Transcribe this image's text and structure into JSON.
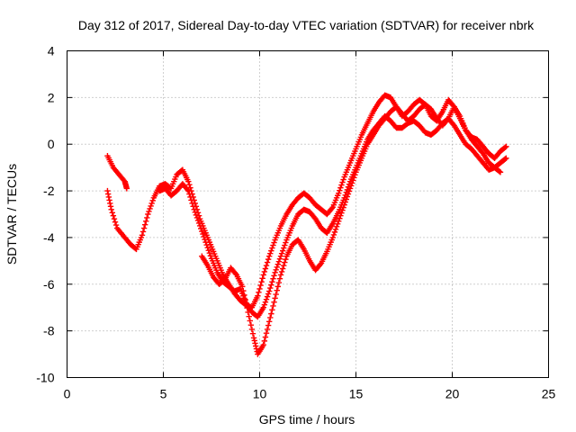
{
  "chart_data": {
    "type": "scatter",
    "title": "Day 312 of 2017, Sidereal Day-to-day VTEC variation (SDTVAR) for receiver nbrk",
    "xlabel": "GPS time / hours",
    "ylabel": "SDTVAR / TECUs",
    "xlim": [
      0,
      25
    ],
    "ylim": [
      -10,
      4
    ],
    "xticks": [
      0,
      5,
      10,
      15,
      20,
      25
    ],
    "yticks": [
      -10,
      -8,
      -6,
      -4,
      -2,
      0,
      2,
      4
    ],
    "xtick_labels": [
      "0",
      "5",
      "10",
      "15",
      "20",
      "25"
    ],
    "ytick_labels": [
      "-10",
      "-8",
      "-6",
      "-4",
      "-2",
      "0",
      "2",
      "4"
    ],
    "grid": true,
    "marker": "plus",
    "color": "#ff0000",
    "series": [
      {
        "x": [
          2.1,
          2.4,
          2.7,
          3.0,
          3.1
        ],
        "y": [
          -0.5,
          -1.0,
          -1.3,
          -1.6,
          -1.9
        ]
      },
      {
        "x": [
          2.1,
          2.3,
          2.6,
          3.0,
          3.3,
          3.6,
          3.9,
          4.2,
          4.5,
          4.8,
          5.1,
          5.4,
          5.7,
          6.0,
          6.3,
          6.6,
          6.9,
          7.2,
          7.5,
          7.8,
          8.1,
          8.4,
          8.7,
          9.0,
          9.3,
          9.6,
          9.9,
          10.2,
          10.5,
          10.8,
          11.1,
          11.4,
          11.7,
          12.0,
          12.3,
          12.6,
          12.9,
          13.2,
          13.5,
          13.8,
          14.1,
          14.4,
          14.7,
          15.0,
          15.3,
          15.6,
          15.9,
          16.2,
          16.5,
          16.8,
          17.1,
          17.4,
          17.7,
          18.0,
          18.3,
          18.6,
          18.9,
          19.2,
          19.5,
          19.8,
          20.1,
          20.4,
          20.7,
          21.0,
          21.3,
          21.6,
          21.9,
          22.2,
          22.5,
          22.8
        ],
        "y": [
          -2.0,
          -2.8,
          -3.6,
          -4.0,
          -4.3,
          -4.5,
          -3.9,
          -3.0,
          -2.3,
          -1.8,
          -1.7,
          -1.9,
          -1.3,
          -1.1,
          -1.6,
          -2.4,
          -3.2,
          -3.8,
          -4.4,
          -5.0,
          -5.6,
          -6.0,
          -6.4,
          -6.7,
          -6.9,
          -7.0,
          -6.5,
          -5.6,
          -4.8,
          -4.1,
          -3.5,
          -3.0,
          -2.6,
          -2.3,
          -2.1,
          -2.3,
          -2.6,
          -2.8,
          -3.0,
          -2.7,
          -2.1,
          -1.4,
          -0.8,
          -0.2,
          0.4,
          0.9,
          1.4,
          1.8,
          2.1,
          2.0,
          1.6,
          1.2,
          1.4,
          1.7,
          1.9,
          1.7,
          1.2,
          1.0,
          1.4,
          1.9,
          1.6,
          1.1,
          0.6,
          0.3,
          0.2,
          -0.1,
          -0.4,
          -0.6,
          -0.3,
          -0.1
        ]
      },
      {
        "x": [
          4.8,
          5.1,
          5.4,
          5.7,
          6.0,
          6.3,
          6.6,
          6.9,
          7.2,
          7.5,
          7.8,
          8.1,
          8.4,
          8.7,
          9.0,
          9.3,
          9.6,
          9.9,
          10.2,
          10.5,
          10.8,
          11.1,
          11.4,
          11.7,
          12.0,
          12.3,
          12.6,
          12.9,
          13.2,
          13.5,
          13.8,
          14.1,
          14.4,
          14.7,
          15.0,
          15.3,
          15.6,
          15.9,
          16.2,
          16.5,
          16.8,
          17.1,
          17.4,
          17.7,
          18.0,
          18.3,
          18.6,
          18.9,
          19.2,
          19.5,
          19.8,
          20.1,
          20.4,
          20.7,
          21.0,
          21.3,
          21.6,
          21.9,
          22.2,
          22.5,
          22.8
        ],
        "y": [
          -2.0,
          -1.9,
          -2.2,
          -2.0,
          -1.7,
          -2.0,
          -2.8,
          -3.5,
          -4.2,
          -4.9,
          -5.5,
          -5.9,
          -6.1,
          -6.3,
          -6.2,
          -6.8,
          -7.2,
          -7.4,
          -7.0,
          -6.3,
          -5.5,
          -4.8,
          -4.1,
          -3.5,
          -3.0,
          -2.8,
          -2.9,
          -3.2,
          -3.6,
          -3.8,
          -3.4,
          -2.9,
          -2.3,
          -1.6,
          -1.0,
          -0.4,
          0.2,
          0.6,
          0.9,
          1.2,
          1.0,
          0.7,
          0.7,
          0.9,
          1.0,
          0.8,
          0.5,
          0.4,
          0.6,
          0.9,
          1.1,
          0.8,
          0.4,
          0.0,
          -0.2,
          -0.5,
          -0.8,
          -1.1,
          -1.0,
          -0.8,
          -0.6
        ]
      },
      {
        "x": [
          7.0,
          7.3,
          7.6,
          7.9,
          8.2,
          8.5,
          8.8,
          9.1,
          9.4,
          9.7,
          9.9,
          10.2,
          10.5,
          10.8,
          11.1,
          11.4,
          11.7,
          12.0,
          12.3,
          12.6,
          12.9,
          13.2,
          13.5,
          13.8,
          14.1,
          14.4,
          14.7,
          15.0,
          15.3,
          15.6,
          15.9,
          16.2,
          16.5,
          16.8,
          17.1,
          17.4,
          17.7,
          18.0,
          18.3,
          18.6,
          18.9,
          19.2,
          19.5,
          19.8,
          20.1,
          20.4,
          20.7,
          21.0,
          21.3,
          21.6,
          21.9,
          22.2,
          22.5
        ],
        "y": [
          -4.8,
          -5.2,
          -5.7,
          -6.0,
          -5.8,
          -5.3,
          -5.6,
          -6.1,
          -7.2,
          -8.3,
          -9.0,
          -8.6,
          -7.6,
          -6.6,
          -5.6,
          -4.8,
          -4.3,
          -4.1,
          -4.5,
          -5.0,
          -5.4,
          -5.1,
          -4.6,
          -4.0,
          -3.3,
          -2.6,
          -1.9,
          -1.2,
          -0.6,
          0.0,
          0.4,
          0.8,
          1.1,
          1.4,
          1.6,
          1.3,
          1.0,
          1.2,
          1.5,
          1.7,
          1.5,
          1.1,
          0.8,
          1.1,
          1.6,
          1.2,
          0.6,
          0.2,
          -0.1,
          -0.4,
          -0.8,
          -1.0,
          -1.2
        ]
      }
    ]
  }
}
